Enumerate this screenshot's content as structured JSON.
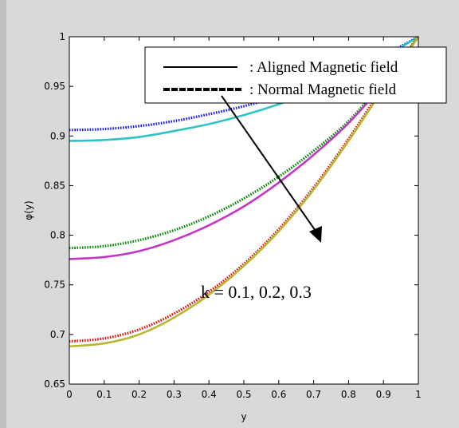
{
  "chart_data": {
    "type": "line",
    "title": "",
    "xlabel": "y",
    "ylabel": "φ(y)",
    "xlim": [
      0,
      1
    ],
    "ylim": [
      0.65,
      1
    ],
    "xticks": [
      "0",
      "0.1",
      "0.2",
      "0.3",
      "0.4",
      "0.5",
      "0.6",
      "0.7",
      "0.8",
      "0.9",
      "1"
    ],
    "yticks": [
      "0.65",
      "0.7",
      "0.75",
      "0.8",
      "0.85",
      "0.9",
      "0.95",
      "1"
    ],
    "grid": false,
    "legend": {
      "placement": "top-right",
      "entries": [
        {
          "label": ": Aligned Magnetic field",
          "style": "solid"
        },
        {
          "label": ": Normal Magnetic field",
          "style": "dotted"
        }
      ]
    },
    "annotation": {
      "text": "k = 0.1, 0.2, 0.3"
    },
    "series": [
      {
        "style": "dotted",
        "color": "#1a1aff",
        "x": [
          0,
          0.1,
          0.2,
          0.3,
          0.4,
          0.5,
          0.6,
          0.7,
          0.8,
          0.9,
          1.0
        ],
        "y": [
          0.906,
          0.907,
          0.91,
          0.915,
          0.922,
          0.93,
          0.94,
          0.952,
          0.965,
          0.981,
          1.0
        ]
      },
      {
        "style": "solid",
        "color": "#2cc4c4",
        "x": [
          0,
          0.1,
          0.2,
          0.3,
          0.4,
          0.5,
          0.6,
          0.7,
          0.8,
          0.9,
          1.0
        ],
        "y": [
          0.895,
          0.896,
          0.899,
          0.905,
          0.912,
          0.921,
          0.932,
          0.945,
          0.96,
          0.979,
          1.0
        ]
      },
      {
        "style": "dotted",
        "color": "#0a8a0a",
        "x": [
          0,
          0.1,
          0.2,
          0.3,
          0.4,
          0.5,
          0.6,
          0.7,
          0.8,
          0.9,
          1.0
        ],
        "y": [
          0.787,
          0.789,
          0.795,
          0.805,
          0.819,
          0.837,
          0.859,
          0.885,
          0.915,
          0.955,
          1.0
        ]
      },
      {
        "style": "solid",
        "color": "#c535c5",
        "x": [
          0,
          0.1,
          0.2,
          0.3,
          0.4,
          0.5,
          0.6,
          0.7,
          0.8,
          0.9,
          1.0
        ],
        "y": [
          0.776,
          0.778,
          0.784,
          0.795,
          0.81,
          0.829,
          0.853,
          0.881,
          0.913,
          0.953,
          1.0
        ]
      },
      {
        "style": "dotted",
        "color": "#e01010",
        "x": [
          0,
          0.1,
          0.2,
          0.3,
          0.4,
          0.5,
          0.6,
          0.7,
          0.8,
          0.9,
          1.0
        ],
        "y": [
          0.693,
          0.696,
          0.705,
          0.721,
          0.743,
          0.771,
          0.806,
          0.848,
          0.897,
          0.95,
          1.0
        ]
      },
      {
        "style": "solid",
        "color": "#b8b830",
        "x": [
          0,
          0.1,
          0.2,
          0.3,
          0.4,
          0.5,
          0.6,
          0.7,
          0.8,
          0.9,
          1.0
        ],
        "y": [
          0.688,
          0.691,
          0.7,
          0.717,
          0.74,
          0.769,
          0.804,
          0.846,
          0.895,
          0.948,
          1.0
        ]
      }
    ]
  }
}
